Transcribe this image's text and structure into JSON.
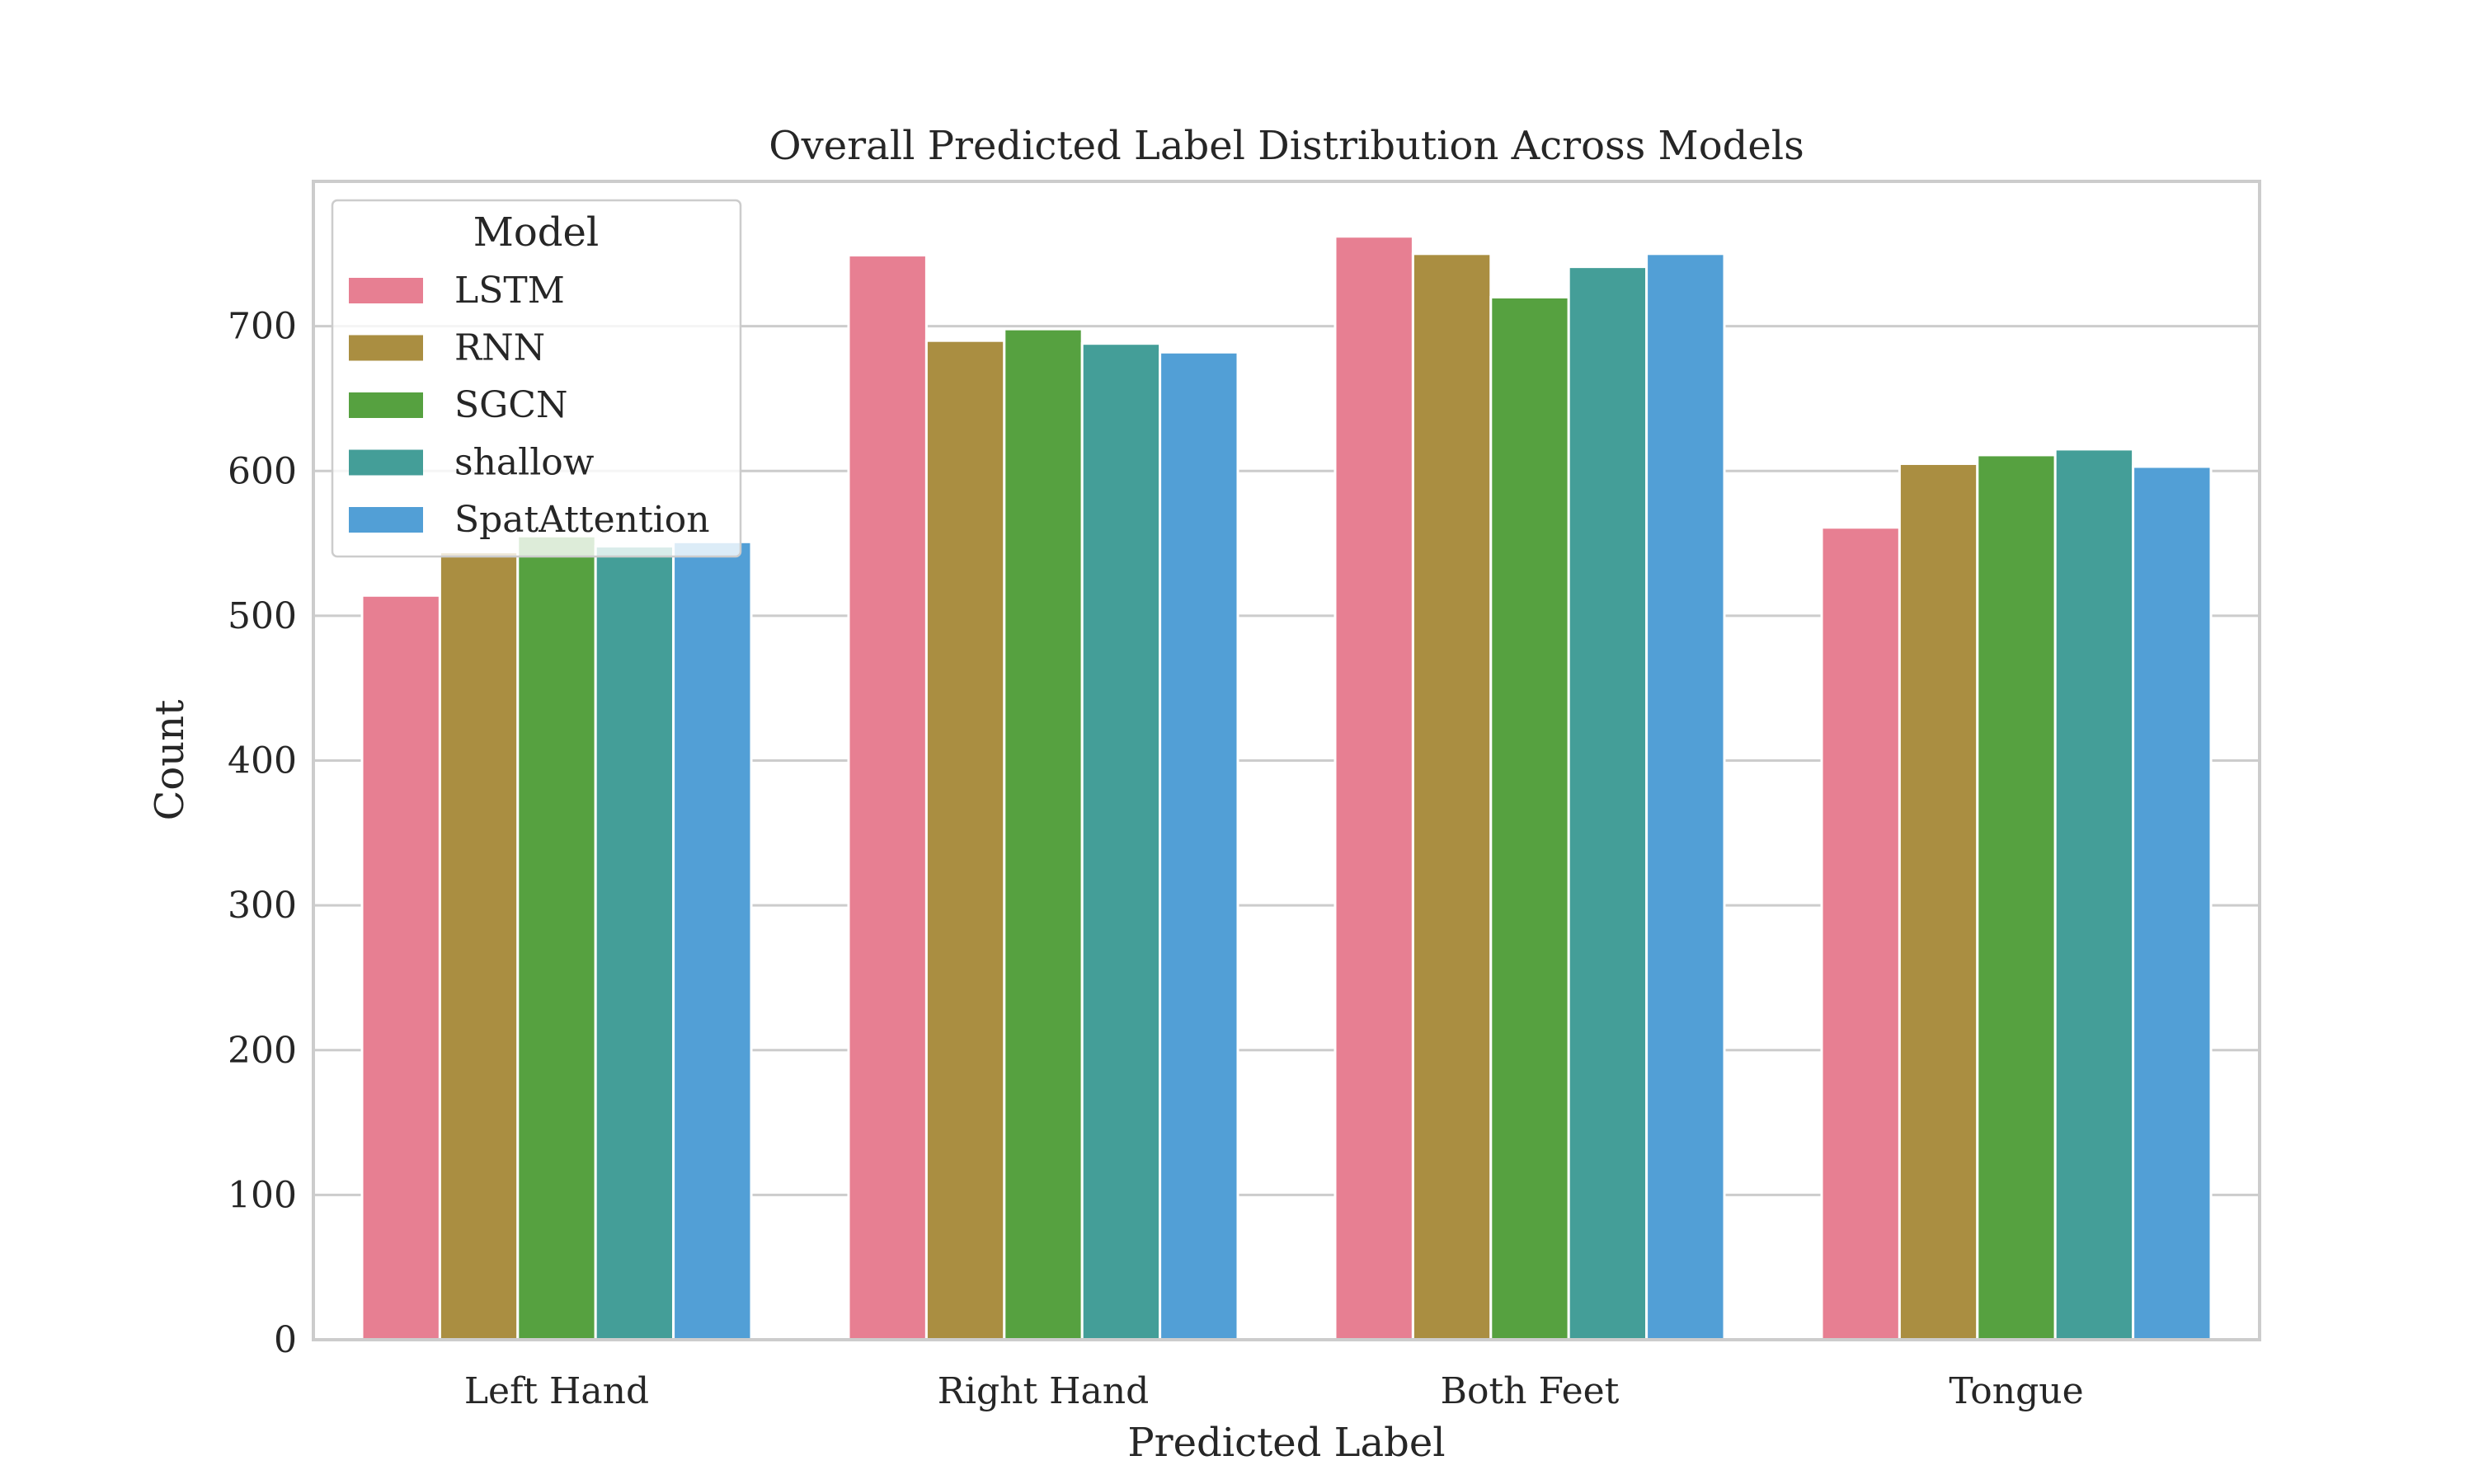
{
  "chart_data": {
    "type": "bar",
    "title": "Overall Predicted Label Distribution Across Models",
    "xlabel": "Predicted Label",
    "ylabel": "Count",
    "categories": [
      "Left Hand",
      "Right Hand",
      "Both Feet",
      "Tongue"
    ],
    "ylim": [
      0,
      800
    ],
    "yticks": [
      0,
      100,
      200,
      300,
      400,
      500,
      600,
      700
    ],
    "grid": true,
    "legend": {
      "title": "Model",
      "placement": "top-left"
    },
    "series": [
      {
        "name": "LSTM",
        "color": "#e77f92",
        "values": [
          514,
          749,
          762,
          561
        ]
      },
      {
        "name": "RNN",
        "color": "#aa8e41",
        "values": [
          544,
          690,
          750,
          605
        ]
      },
      {
        "name": "SGCN",
        "color": "#56a140",
        "values": [
          555,
          698,
          720,
          611
        ]
      },
      {
        "name": "shallow",
        "color": "#449e98",
        "values": [
          548,
          688,
          741,
          615
        ]
      },
      {
        "name": "SpatAttention",
        "color": "#529fd6",
        "values": [
          551,
          682,
          750,
          603
        ]
      }
    ]
  }
}
